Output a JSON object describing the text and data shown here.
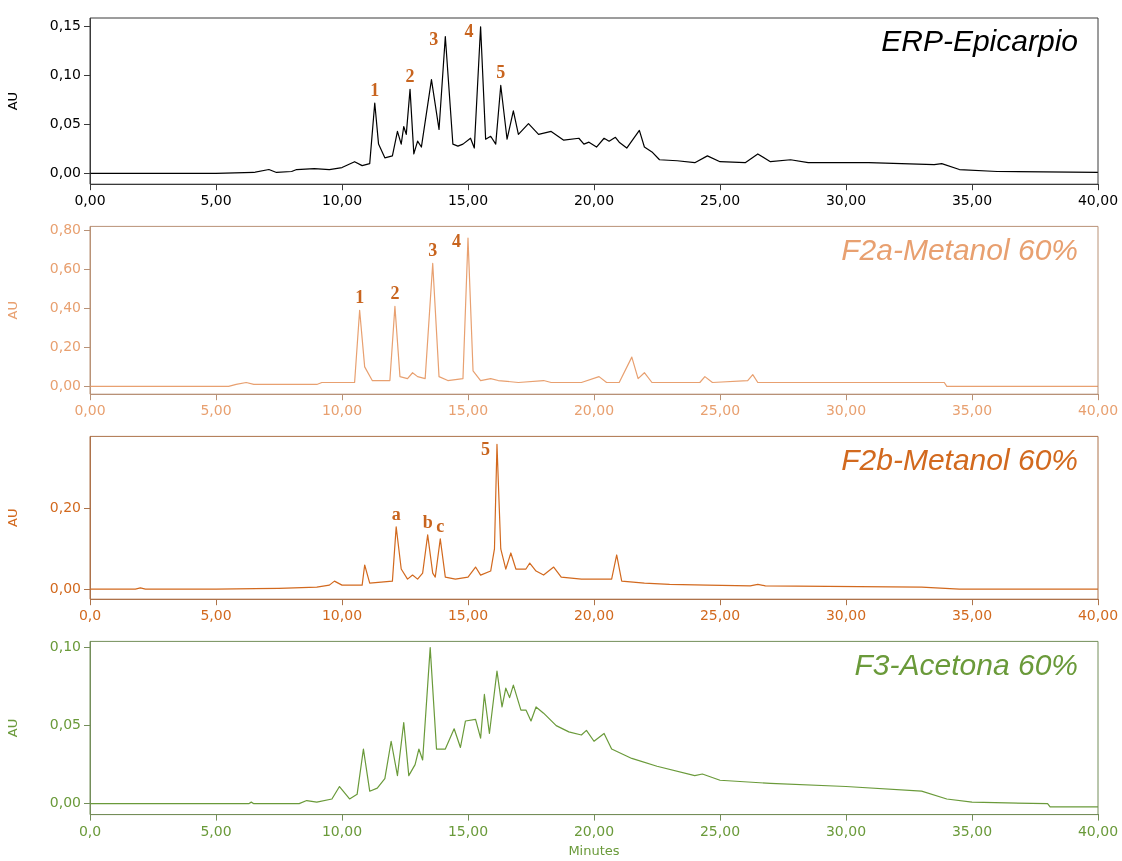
{
  "chart_data": [
    {
      "type": "line",
      "title": "ERP-Epicarpio",
      "ylabel": "AU",
      "color": "#000000",
      "grid": false,
      "legend": false,
      "marker": "none",
      "x": [
        0,
        5,
        6.5,
        7.1,
        7.4,
        8,
        8.2,
        8.9,
        9.5,
        10,
        10.5,
        10.8,
        11.1,
        11.3,
        11.45,
        11.7,
        12.0,
        12.2,
        12.35,
        12.45,
        12.55,
        12.7,
        12.85,
        13.0,
        13.15,
        13.55,
        13.85,
        14.1,
        14.4,
        14.6,
        14.8,
        15.1,
        15.25,
        15.5,
        15.7,
        15.9,
        16.1,
        16.3,
        16.55,
        16.8,
        17.0,
        17.4,
        17.8,
        18.3,
        18.8,
        19.4,
        19.6,
        19.8,
        20.1,
        20.4,
        20.6,
        20.85,
        21.0,
        21.3,
        21.8,
        22.0,
        22.3,
        22.6,
        23.3,
        24.0,
        24.5,
        25.0,
        26.0,
        26.5,
        27.0,
        27.8,
        28.5,
        30.9,
        33.5,
        33.8,
        34.5,
        36,
        40
      ],
      "values": [
        0,
        0,
        0.001,
        0.004,
        0.001,
        0.002,
        0.004,
        0.005,
        0.004,
        0.006,
        0.012,
        0.008,
        0.01,
        0.072,
        0.03,
        0.016,
        0.018,
        0.043,
        0.03,
        0.048,
        0.04,
        0.086,
        0.02,
        0.033,
        0.027,
        0.096,
        0.045,
        0.14,
        0.03,
        0.028,
        0.03,
        0.036,
        0.026,
        0.15,
        0.035,
        0.038,
        0.03,
        0.09,
        0.035,
        0.064,
        0.04,
        0.051,
        0.04,
        0.043,
        0.034,
        0.036,
        0.03,
        0.032,
        0.027,
        0.036,
        0.033,
        0.037,
        0.032,
        0.026,
        0.044,
        0.027,
        0.022,
        0.014,
        0.013,
        0.011,
        0.018,
        0.012,
        0.011,
        0.02,
        0.012,
        0.014,
        0.011,
        0.011,
        0.009,
        0.01,
        0.004,
        0.002,
        0.001
      ],
      "xlim": [
        0,
        40
      ],
      "xticks": [
        {
          "value": 0,
          "label": "0,00"
        },
        {
          "value": 5,
          "label": "5,00"
        },
        {
          "value": 10,
          "label": "10,00"
        },
        {
          "value": 15,
          "label": "15,00"
        },
        {
          "value": 20,
          "label": "20,00"
        },
        {
          "value": 25,
          "label": "25,00"
        },
        {
          "value": 30,
          "label": "30,00"
        },
        {
          "value": 35,
          "label": "35,00"
        },
        {
          "value": 40,
          "label": "40,00"
        }
      ],
      "ylim": [
        -0.011,
        0.159
      ],
      "yticks": [
        {
          "value": 0,
          "label": "0,00"
        },
        {
          "value": 0.05,
          "label": "0,05"
        },
        {
          "value": 0.1,
          "label": "0,10"
        },
        {
          "value": 0.15,
          "label": "0,15"
        }
      ],
      "annotations": [
        {
          "text": "1",
          "x": 11.3,
          "y": 0.072
        },
        {
          "text": "2",
          "x": 12.7,
          "y": 0.086
        },
        {
          "text": "3",
          "x": 14.1,
          "y": 0.14
        },
        {
          "text": "4",
          "x": 15.5,
          "y": 0.15
        },
        {
          "text": "5",
          "x": 16.3,
          "y": 0.09
        }
      ]
    },
    {
      "type": "line",
      "title": "F2a-Metanol 60%",
      "ylabel": "AU",
      "color": "#e8a070",
      "grid": false,
      "legend": false,
      "marker": "none",
      "x": [
        0,
        5.5,
        5.8,
        6.2,
        6.5,
        9,
        9.2,
        10.5,
        10.7,
        10.9,
        11.2,
        11.9,
        12.1,
        12.3,
        12.6,
        12.8,
        13.0,
        13.3,
        13.6,
        13.85,
        14.2,
        14.8,
        15.0,
        15.2,
        15.5,
        15.9,
        16.2,
        17.0,
        18.0,
        18.3,
        19.5,
        20.2,
        20.5,
        21.0,
        21.5,
        21.75,
        22.0,
        22.3,
        23.5,
        24.2,
        24.4,
        24.7,
        26.1,
        26.3,
        26.5,
        33.9,
        34.0,
        40
      ],
      "values": [
        0,
        0,
        0.01,
        0.02,
        0.01,
        0.01,
        0.02,
        0.02,
        0.39,
        0.1,
        0.03,
        0.03,
        0.41,
        0.05,
        0.04,
        0.07,
        0.05,
        0.04,
        0.63,
        0.05,
        0.03,
        0.04,
        0.76,
        0.08,
        0.03,
        0.04,
        0.03,
        0.02,
        0.03,
        0.02,
        0.02,
        0.05,
        0.02,
        0.02,
        0.15,
        0.04,
        0.07,
        0.02,
        0.02,
        0.02,
        0.05,
        0.02,
        0.03,
        0.06,
        0.02,
        0.02,
        0,
        0
      ],
      "xlim": [
        0,
        40
      ],
      "xticks": [
        {
          "value": 0,
          "label": "0,00"
        },
        {
          "value": 5,
          "label": "5,00"
        },
        {
          "value": 10,
          "label": "10,00"
        },
        {
          "value": 15,
          "label": "15,00"
        },
        {
          "value": 20,
          "label": "20,00"
        },
        {
          "value": 25,
          "label": "25,00"
        },
        {
          "value": 30,
          "label": "30,00"
        },
        {
          "value": 35,
          "label": "35,00"
        },
        {
          "value": 40,
          "label": "40,00"
        }
      ],
      "ylim": [
        -0.04,
        0.82
      ],
      "yticks": [
        {
          "value": 0,
          "label": "0,00"
        },
        {
          "value": 0.2,
          "label": "0,20"
        },
        {
          "value": 0.4,
          "label": "0,40"
        },
        {
          "value": 0.6,
          "label": "0,60"
        },
        {
          "value": 0.8,
          "label": "0,80"
        }
      ],
      "annotations": [
        {
          "text": "1",
          "x": 10.7,
          "y": 0.39
        },
        {
          "text": "2",
          "x": 12.1,
          "y": 0.41
        },
        {
          "text": "3",
          "x": 13.6,
          "y": 0.63
        },
        {
          "text": "4",
          "x": 15.0,
          "y": 0.76
        }
      ]
    },
    {
      "type": "line",
      "title": "F2b-Metanol 60%",
      "ylabel": "AU",
      "color": "#d2691e",
      "grid": false,
      "legend": false,
      "marker": "none",
      "x": [
        0,
        1.8,
        2.0,
        2.2,
        5,
        7.5,
        9,
        9.5,
        9.7,
        10,
        10.8,
        10.9,
        11.1,
        12.0,
        12.15,
        12.35,
        12.6,
        12.8,
        13.0,
        13.2,
        13.4,
        13.6,
        13.7,
        13.9,
        14.1,
        14.5,
        15.0,
        15.3,
        15.5,
        15.9,
        16.05,
        16.15,
        16.3,
        16.5,
        16.7,
        16.9,
        17.3,
        17.45,
        17.7,
        18.0,
        18.4,
        18.7,
        19.5,
        20.7,
        20.9,
        21.1,
        22,
        23,
        24.5,
        26.2,
        26.5,
        26.8,
        33,
        34.5,
        40
      ],
      "values": [
        0,
        0,
        0.003,
        0,
        0,
        0.002,
        0.005,
        0.01,
        0.02,
        0.01,
        0.01,
        0.06,
        0.015,
        0.02,
        0.155,
        0.05,
        0.025,
        0.035,
        0.025,
        0.04,
        0.135,
        0.04,
        0.03,
        0.125,
        0.03,
        0.025,
        0.03,
        0.055,
        0.035,
        0.045,
        0.1,
        0.36,
        0.1,
        0.05,
        0.09,
        0.05,
        0.05,
        0.065,
        0.045,
        0.035,
        0.055,
        0.03,
        0.025,
        0.025,
        0.085,
        0.02,
        0.015,
        0.012,
        0.01,
        0.008,
        0.012,
        0.008,
        0.005,
        0,
        0
      ],
      "xlim": [
        0,
        40
      ],
      "xticks": [
        {
          "value": 0,
          "label": "0,0"
        },
        {
          "value": 5,
          "label": "5,00"
        },
        {
          "value": 10,
          "label": "10,00"
        },
        {
          "value": 15,
          "label": "15,00"
        },
        {
          "value": 20,
          "label": "20,00"
        },
        {
          "value": 25,
          "label": "25,00"
        },
        {
          "value": 30,
          "label": "30,00"
        },
        {
          "value": 35,
          "label": "35,00"
        },
        {
          "value": 40,
          "label": "40,00"
        }
      ],
      "ylim": [
        -0.025,
        0.38
      ],
      "yticks": [
        {
          "value": 0,
          "label": "0,00"
        },
        {
          "value": 0.2,
          "label": "0,20"
        }
      ],
      "annotations": [
        {
          "text": "a",
          "x": 12.15,
          "y": 0.155
        },
        {
          "text": "b",
          "x": 13.4,
          "y": 0.135
        },
        {
          "text": "c",
          "x": 13.9,
          "y": 0.125
        },
        {
          "text": "5",
          "x": 16.15,
          "y": 0.36
        }
      ]
    },
    {
      "type": "line",
      "title": "F3-Acetona 60%",
      "xlabel": "Minutes",
      "ylabel": "AU",
      "color": "#6a9a3a",
      "grid": false,
      "legend": false,
      "marker": "none",
      "x": [
        0,
        6.3,
        6.4,
        6.5,
        8.3,
        8.6,
        9.0,
        9.6,
        9.9,
        10.3,
        10.6,
        10.85,
        11.1,
        11.4,
        11.7,
        11.95,
        12.2,
        12.45,
        12.65,
        12.9,
        13.05,
        13.2,
        13.5,
        13.75,
        14.1,
        14.45,
        14.7,
        14.9,
        15.3,
        15.5,
        15.65,
        15.85,
        16.15,
        16.35,
        16.5,
        16.65,
        16.8,
        17.1,
        17.3,
        17.5,
        17.7,
        18.0,
        18.5,
        19.0,
        19.5,
        19.7,
        20.0,
        20.4,
        20.7,
        21.5,
        22.5,
        24.0,
        24.3,
        25,
        27,
        30,
        33,
        34,
        35,
        38,
        38.1,
        40
      ],
      "values": [
        0,
        0,
        0.001,
        0,
        0,
        0.002,
        0.001,
        0.003,
        0.011,
        0.003,
        0.006,
        0.035,
        0.008,
        0.01,
        0.016,
        0.04,
        0.018,
        0.052,
        0.018,
        0.025,
        0.035,
        0.028,
        0.1,
        0.035,
        0.035,
        0.048,
        0.036,
        0.053,
        0.054,
        0.042,
        0.07,
        0.045,
        0.085,
        0.062,
        0.074,
        0.068,
        0.076,
        0.06,
        0.06,
        0.053,
        0.062,
        0.058,
        0.05,
        0.046,
        0.044,
        0.047,
        0.04,
        0.045,
        0.035,
        0.029,
        0.024,
        0.018,
        0.019,
        0.015,
        0.013,
        0.011,
        0.008,
        0.003,
        0.001,
        0,
        -0.002,
        -0.002
      ],
      "xlim": [
        0,
        40
      ],
      "xticks": [
        {
          "value": 0,
          "label": "0,0"
        },
        {
          "value": 5,
          "label": "5,00"
        },
        {
          "value": 10,
          "label": "10,00"
        },
        {
          "value": 15,
          "label": "15,00"
        },
        {
          "value": 20,
          "label": "20,00"
        },
        {
          "value": 25,
          "label": "25,00"
        },
        {
          "value": 30,
          "label": "30,00"
        },
        {
          "value": 35,
          "label": "35,00"
        },
        {
          "value": 40,
          "label": "40,00"
        }
      ],
      "ylim": [
        -0.007,
        0.104
      ],
      "yticks": [
        {
          "value": 0,
          "label": "0,00"
        },
        {
          "value": 0.05,
          "label": "0,05"
        },
        {
          "value": 0.1,
          "label": "0,10"
        }
      ]
    }
  ]
}
